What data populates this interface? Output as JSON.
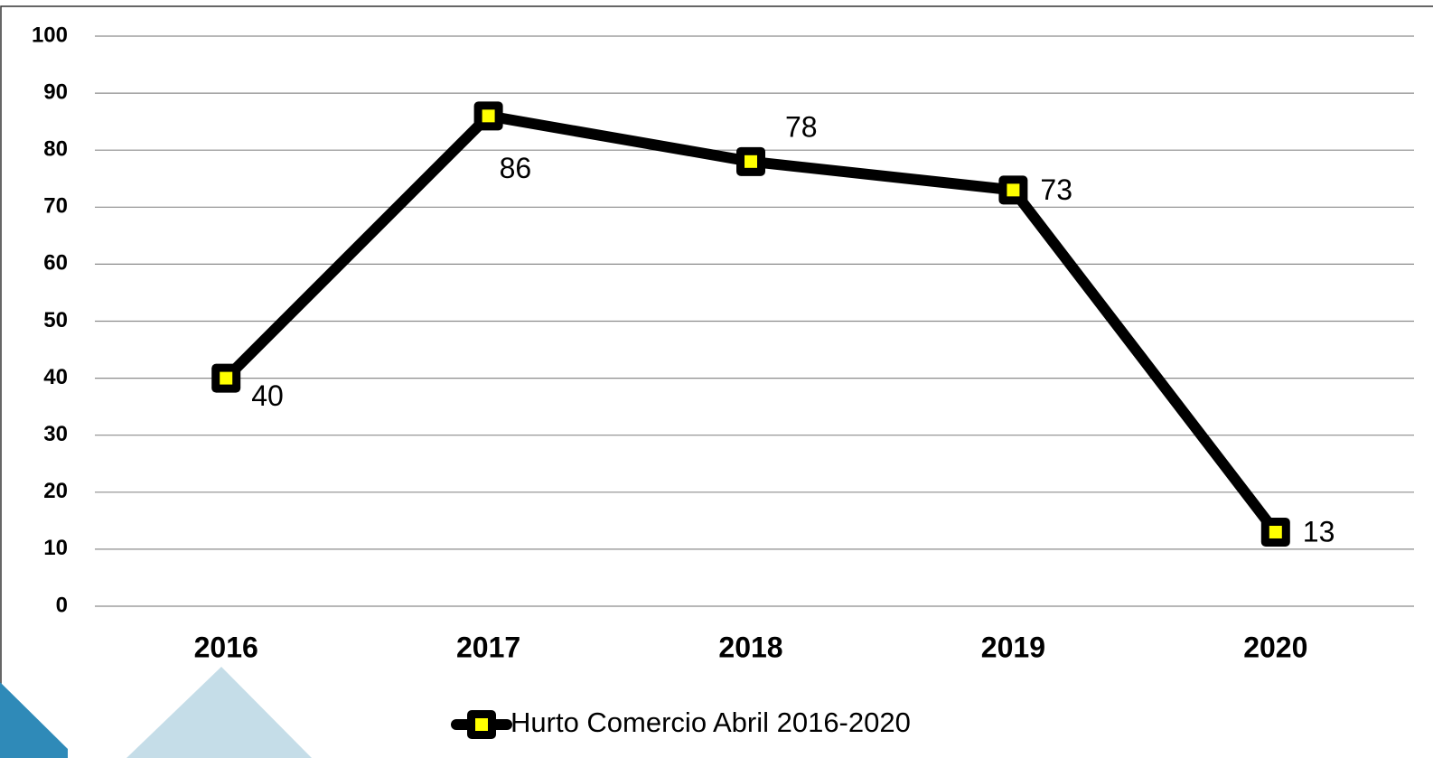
{
  "chart_data": {
    "type": "line",
    "categories": [
      "2016",
      "2017",
      "2018",
      "2019",
      "2020"
    ],
    "series": [
      {
        "name": "Hurto Comercio Abril 2016-2020",
        "color": "#000000",
        "marker_color": "#ffff00",
        "values": [
          40,
          86,
          78,
          73,
          13
        ]
      }
    ],
    "ylim": [
      0,
      100
    ],
    "yticks": [
      0,
      10,
      20,
      30,
      40,
      50,
      60,
      70,
      80,
      90,
      100
    ],
    "grid": true,
    "legend": "bottom"
  }
}
